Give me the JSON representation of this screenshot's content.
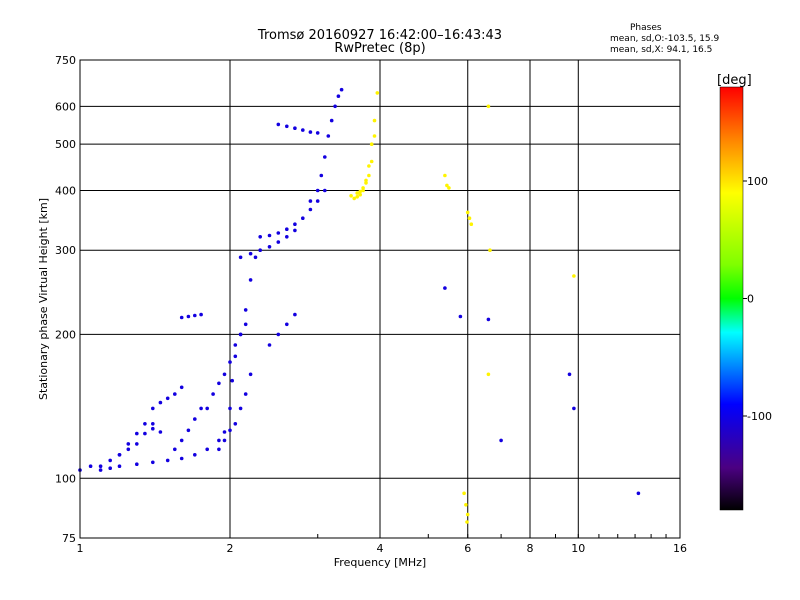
{
  "header": {
    "title": "Tromsø 20160927 16:42:00–16:43:43",
    "subtitle": "RwPretec (8p)",
    "stats_title": "Phases",
    "stats_o": "mean, sd,O:-103.5, 15.9",
    "stats_x": "mean, sd,X: 94.1, 16.5"
  },
  "chart_data": {
    "type": "scatter",
    "xlabel": "Frequency [MHz]",
    "ylabel": "Stationary phase Virtual Height [km]",
    "x_scale": "log",
    "y_scale": "log",
    "xlim": [
      1,
      16
    ],
    "ylim": [
      75,
      750
    ],
    "x_ticks": [
      1,
      2,
      4,
      6,
      8,
      10,
      16
    ],
    "x_tick_labels": [
      "1",
      "2",
      "4",
      "6",
      "8",
      "10",
      "16"
    ],
    "y_ticks": [
      75,
      100,
      200,
      300,
      400,
      500,
      600,
      750
    ],
    "y_tick_labels": [
      "75",
      "100",
      "200",
      "300",
      "400",
      "500",
      "600",
      "750"
    ],
    "grid": true,
    "colorbar": {
      "label": "[deg]",
      "range": [
        -180,
        180
      ],
      "ticks": [
        100,
        0,
        -100
      ],
      "tick_labels": [
        "100",
        "0",
        "-100"
      ]
    },
    "series": [
      {
        "mode": "O",
        "color_value": -103.5,
        "traces": [
          {
            "x": [
              1.0,
              1.05,
              1.1,
              1.15,
              1.2,
              1.3,
              1.4,
              1.5,
              1.6,
              1.7,
              1.8,
              1.9,
              1.95
            ],
            "y": [
              104,
              106,
              104,
              105,
              106,
              107,
              108,
              109,
              110,
              112,
              115,
              120,
              125
            ]
          },
          {
            "x": [
              1.1,
              1.15,
              1.2,
              1.25,
              1.3,
              1.35,
              1.4
            ],
            "y": [
              106,
              109,
              112,
              115,
              118,
              124,
              130
            ]
          },
          {
            "x": [
              1.2,
              1.25,
              1.3,
              1.35,
              1.4,
              1.45
            ],
            "y": [
              112,
              118,
              124,
              130,
              127,
              125
            ]
          },
          {
            "x": [
              1.4,
              1.45,
              1.5,
              1.55,
              1.6
            ],
            "y": [
              140,
              144,
              147,
              150,
              155
            ]
          },
          {
            "x": [
              1.55,
              1.6,
              1.65,
              1.7,
              1.75
            ],
            "y": [
              115,
              120,
              126,
              133,
              140
            ]
          },
          {
            "x": [
              1.6,
              1.65,
              1.7,
              1.75
            ],
            "y": [
              217,
              218,
              219,
              220
            ]
          },
          {
            "x": [
              1.8,
              1.85,
              1.9,
              1.95,
              2.0,
              2.05,
              2.1,
              2.15
            ],
            "y": [
              140,
              150,
              158,
              165,
              175,
              190,
              200,
              210
            ]
          },
          {
            "x": [
              1.9,
              1.95,
              2.0,
              2.05,
              2.1,
              2.15,
              2.2
            ],
            "y": [
              115,
              120,
              126,
              130,
              140,
              150,
              165
            ]
          },
          {
            "x": [
              2.0,
              2.02,
              2.05,
              2.1,
              2.15,
              2.2,
              2.25
            ],
            "y": [
              140,
              160,
              180,
              200,
              225,
              260,
              290
            ]
          },
          {
            "x": [
              2.1,
              2.2,
              2.3,
              2.4,
              2.5,
              2.6,
              2.7
            ],
            "y": [
              290,
              295,
              300,
              305,
              312,
              320,
              330
            ]
          },
          {
            "x": [
              2.3,
              2.4,
              2.5,
              2.6,
              2.7,
              2.8,
              2.9,
              3.0,
              3.1
            ],
            "y": [
              320,
              322,
              326,
              332,
              340,
              350,
              365,
              380,
              400
            ]
          },
          {
            "x": [
              2.5,
              2.6,
              2.7,
              2.8,
              2.9,
              3.0
            ],
            "y": [
              550,
              545,
              540,
              535,
              530,
              528
            ]
          },
          {
            "x": [
              2.4,
              2.5,
              2.6,
              2.7
            ],
            "y": [
              190,
              200,
              210,
              220
            ]
          },
          {
            "x": [
              2.9,
              3.0,
              3.05,
              3.1,
              3.15,
              3.2,
              3.25,
              3.3,
              3.35
            ],
            "y": [
              380,
              400,
              430,
              470,
              520,
              560,
              600,
              630,
              650
            ]
          },
          {
            "x": [
              5.4,
              5.8,
              6.6
            ],
            "y": [
              250,
              218,
              215
            ]
          },
          {
            "x": [
              7.0
            ],
            "y": [
              120
            ]
          },
          {
            "x": [
              9.6,
              9.8
            ],
            "y": [
              165,
              140
            ]
          },
          {
            "x": [
              13.2
            ],
            "y": [
              93
            ]
          }
        ]
      },
      {
        "mode": "X",
        "color_value": 94.1,
        "traces": [
          {
            "x": [
              3.5,
              3.55,
              3.6,
              3.65,
              3.7,
              3.75,
              3.8,
              3.85,
              3.9,
              3.95
            ],
            "y": [
              390,
              385,
              388,
              392,
              400,
              420,
              450,
              500,
              560,
              640
            ]
          },
          {
            "x": [
              3.6,
              3.65,
              3.7,
              3.75,
              3.8,
              3.85,
              3.9
            ],
            "y": [
              395,
              398,
              405,
              415,
              430,
              460,
              520
            ]
          },
          {
            "x": [
              5.4,
              5.45,
              5.5
            ],
            "y": [
              430,
              410,
              405
            ]
          },
          {
            "x": [
              6.0,
              6.05,
              6.1,
              6.6
            ],
            "y": [
              360,
              350,
              340,
              165
            ]
          },
          {
            "x": [
              5.9,
              5.95,
              6.0,
              5.98
            ],
            "y": [
              93,
              88,
              84,
              81
            ]
          },
          {
            "x": [
              6.6,
              6.65
            ],
            "y": [
              600,
              300
            ]
          },
          {
            "x": [
              9.8
            ],
            "y": [
              265
            ]
          }
        ]
      }
    ]
  }
}
